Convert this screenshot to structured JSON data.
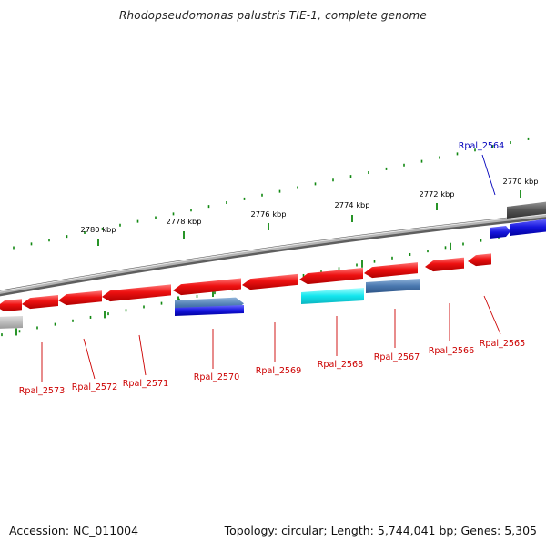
{
  "title": "Rhodopseudomonas palustris TIE-1, complete genome",
  "footer": {
    "accession": "Accession: NC_011004",
    "summary": "Topology: circular; Length: 5,744,041 bp; Genes: 5,305"
  },
  "colors": {
    "forward_gene": "#ee1111",
    "reverse_gene_blue": "#1515dd",
    "reverse_gene_steel": "#4a78b0",
    "reverse_gene_cyan": "#14e6ee",
    "label_red": "#cc0000",
    "label_blue": "#0000bb",
    "tick_green": "#118811",
    "backbone": "#8a8a8a"
  },
  "ticks": [
    {
      "label": "2780 kbp"
    },
    {
      "label": "2778 kbp"
    },
    {
      "label": "2776 kbp"
    },
    {
      "label": "2774 kbp"
    },
    {
      "label": "2772 kbp"
    },
    {
      "label": "2770 kbp"
    }
  ],
  "genes": [
    {
      "name": "Rpal_2573",
      "color": "red"
    },
    {
      "name": "Rpal_2572",
      "color": "red"
    },
    {
      "name": "Rpal_2571",
      "color": "red"
    },
    {
      "name": "Rpal_2570",
      "color": "red"
    },
    {
      "name": "Rpal_2569",
      "color": "red"
    },
    {
      "name": "Rpal_2568",
      "color": "red"
    },
    {
      "name": "Rpal_2567",
      "color": "red"
    },
    {
      "name": "Rpal_2566",
      "color": "red"
    },
    {
      "name": "Rpal_2565",
      "color": "red"
    },
    {
      "name": "Rpal_2564",
      "color": "blue"
    }
  ]
}
